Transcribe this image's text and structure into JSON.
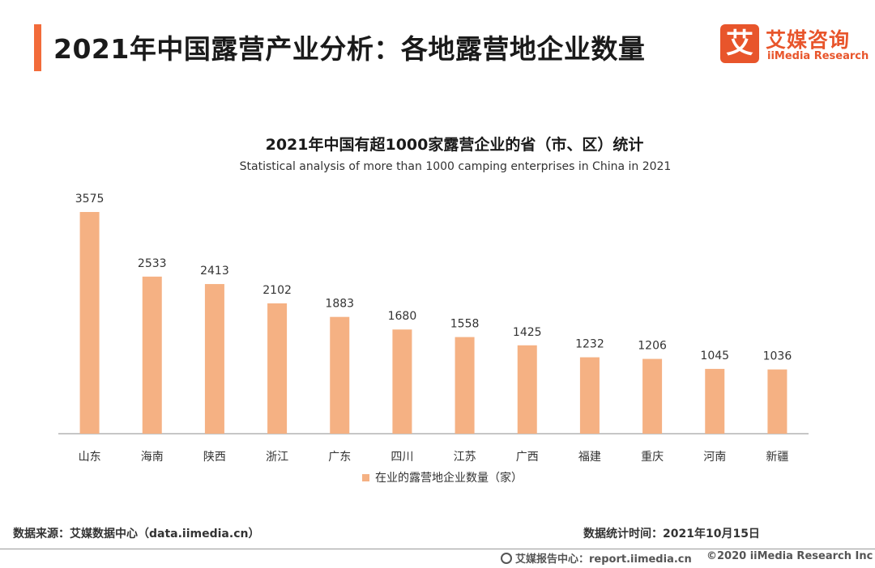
{
  "header": {
    "title": "2021年中国露营产业分析：各地露营地企业数量",
    "accent_color": "#f26b3a"
  },
  "logo": {
    "mark": "艾",
    "name_cn": "艾媒咨询",
    "name_en": "iiMedia Research",
    "brand_color": "#e8552b"
  },
  "chart_data": {
    "type": "bar",
    "title": "2021年中国有超1000家露营企业的省（市、区）统计",
    "subtitle": "Statistical analysis of more than 1000 camping enterprises in China in 2021",
    "categories": [
      "山东",
      "海南",
      "陕西",
      "浙江",
      "广东",
      "四川",
      "江苏",
      "广西",
      "福建",
      "重庆",
      "河南",
      "新疆"
    ],
    "series": [
      {
        "name": "在业的露营地企业数量（家）",
        "values": [
          3575,
          2533,
          2413,
          2102,
          1883,
          1680,
          1558,
          1425,
          1232,
          1206,
          1045,
          1036
        ],
        "color": "#f5b183"
      }
    ],
    "ylim": [
      0,
      3575
    ],
    "grid": false,
    "data_labels": true,
    "legend_position": "bottom"
  },
  "footer": {
    "source": "数据来源：艾媒数据中心（data.iimedia.cn）",
    "stat_date": "数据统计时间：2021年10月15日",
    "report_center": "艾媒报告中心：report.iimedia.cn",
    "copyright": "©2020  iiMedia Research  Inc"
  }
}
